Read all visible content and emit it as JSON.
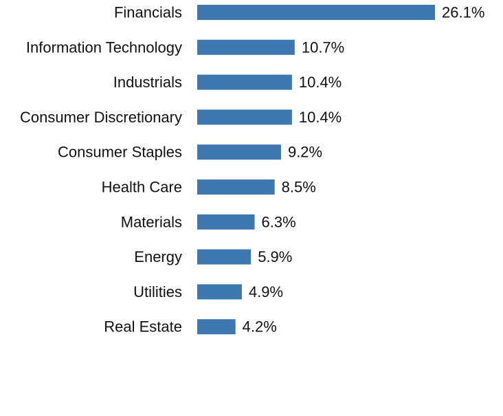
{
  "chart_data": {
    "type": "bar",
    "orientation": "horizontal",
    "categories": [
      "Financials",
      "Information Technology",
      "Industrials",
      "Consumer Discretionary",
      "Consumer Staples",
      "Health Care",
      "Materials",
      "Energy",
      "Utilities",
      "Real Estate"
    ],
    "values": [
      26.1,
      10.7,
      10.4,
      10.4,
      9.2,
      8.5,
      6.3,
      5.9,
      4.9,
      4.2
    ],
    "value_labels": [
      "26.1%",
      "10.7%",
      "10.4%",
      "10.4%",
      "9.2%",
      "8.5%",
      "6.3%",
      "5.9%",
      "4.9%",
      "4.2%"
    ],
    "unit": "%",
    "bar_color": "#3f78b0",
    "grid": false,
    "legend": "none"
  }
}
